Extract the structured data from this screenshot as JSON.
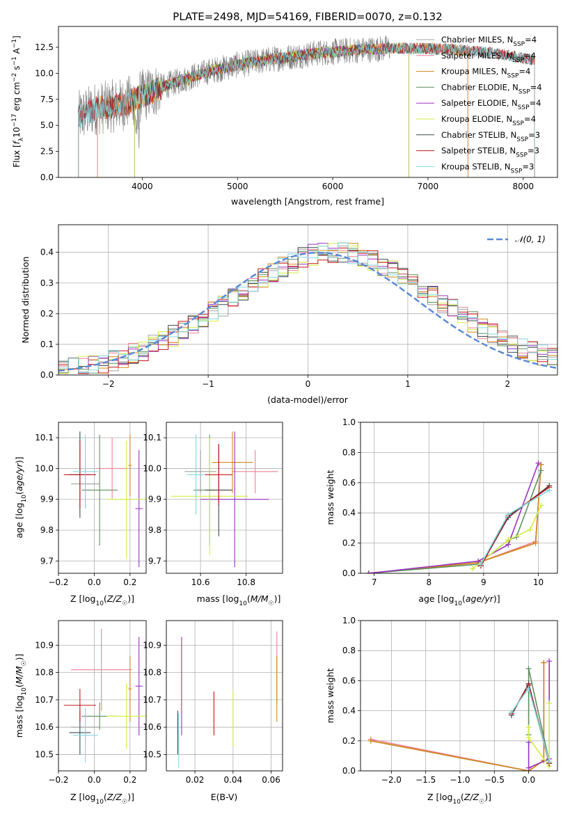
{
  "figure_title": "PLATE=2498, MJD=54169, FIBERID=0070, z=0.132",
  "colors": {
    "chabrier_miles": "#a0a0a0",
    "salpeter_miles": "#f08090",
    "kroupa_miles": "#d08818",
    "chabrier_elodie": "#5f8f5f",
    "salpeter_elodie": "#9a30c0",
    "kroupa_elodie": "#d0ee40",
    "chabrier_stelib": "#3a4a4a",
    "salpeter_stelib": "#c01818",
    "kroupa_stelib": "#80d8e0",
    "normal_curve": "#5a8ad8"
  },
  "chart_data": [
    {
      "id": "spectrum",
      "type": "line",
      "title": "PLATE=2498, MJD=54169, FIBERID=0070, z=0.132",
      "xlabel": "wavelength [Angstrom, rest frame]",
      "ylabel": "Flux [f_λ 10^-17 erg cm^-2 s^-1 A^-1]",
      "xlim": [
        3120,
        8360
      ],
      "ylim": [
        0,
        14.5
      ],
      "xticks": [
        4000,
        5000,
        6000,
        7000,
        8000
      ],
      "yticks": [
        0.0,
        2.5,
        5.0,
        7.5,
        10.0,
        12.5
      ],
      "legend_position": "top-right",
      "series": [
        {
          "name": "Chabrier MILES, N_SSP=4",
          "key": "chabrier_miles",
          "x_range": [
            3530,
            7420
          ]
        },
        {
          "name": "Salpeter MILES, N_SSP=4",
          "key": "salpeter_miles",
          "x_range": [
            3530,
            7420
          ]
        },
        {
          "name": "Kroupa MILES, N_SSP=4",
          "key": "kroupa_miles",
          "x_range": [
            3530,
            7420
          ]
        },
        {
          "name": "Chabrier ELODIE, N_SSP=4",
          "key": "chabrier_elodie",
          "x_range": [
            3920,
            6800
          ]
        },
        {
          "name": "Salpeter ELODIE, N_SSP=4",
          "key": "salpeter_elodie",
          "x_range": [
            3920,
            6800
          ]
        },
        {
          "name": "Kroupa ELODIE, N_SSP=4",
          "key": "kroupa_elodie",
          "x_range": [
            3920,
            6800
          ]
        },
        {
          "name": "Chabrier STELIB, N_SSP=3",
          "key": "chabrier_stelib",
          "x_range": [
            3330,
            8120
          ]
        },
        {
          "name": "Salpeter STELIB, N_SSP=3",
          "key": "salpeter_stelib",
          "x_range": [
            3330,
            8120
          ]
        },
        {
          "name": "Kroupa STELIB, N_SSP=3",
          "key": "kroupa_stelib",
          "x_range": [
            3330,
            8120
          ]
        }
      ],
      "continuum": {
        "x": [
          3330,
          3500,
          3800,
          4000,
          4300,
          4700,
          5000,
          5400,
          5800,
          6200,
          6600,
          7000,
          7400,
          7800,
          8100
        ],
        "y": [
          5.8,
          6.6,
          7.0,
          7.8,
          9.0,
          10.2,
          10.8,
          11.4,
          11.9,
          12.2,
          12.4,
          12.4,
          12.2,
          11.8,
          11.3
        ]
      }
    },
    {
      "id": "residuals",
      "type": "histogram",
      "xlabel": "(data-model)/error",
      "ylabel": "Normed distribution",
      "xlim": [
        -2.5,
        2.5
      ],
      "ylim": [
        0,
        0.49
      ],
      "xticks": [
        -2,
        -1,
        0,
        1,
        2
      ],
      "yticks": [
        0.0,
        0.1,
        0.2,
        0.3,
        0.4
      ],
      "legend": "𝒩(0, 1)",
      "legend_position": "top-right",
      "bin_width": 0.1,
      "mean_density": [
        0.018,
        0.022,
        0.027,
        0.033,
        0.04,
        0.048,
        0.058,
        0.069,
        0.081,
        0.095,
        0.11,
        0.127,
        0.145,
        0.164,
        0.184,
        0.205,
        0.227,
        0.249,
        0.271,
        0.293,
        0.313,
        0.333,
        0.351,
        0.368,
        0.381,
        0.392,
        0.398,
        0.401,
        0.4,
        0.395,
        0.386,
        0.374,
        0.358,
        0.341,
        0.321,
        0.301,
        0.279,
        0.258,
        0.236,
        0.214,
        0.193,
        0.172,
        0.153,
        0.135,
        0.118,
        0.102,
        0.088,
        0.075,
        0.064,
        0.054
      ],
      "normal_curve": {
        "mean": 0.1,
        "sigma": 1.0
      }
    },
    {
      "id": "age_vs_Z",
      "type": "errorbar",
      "xlabel": "Z [log10(Z/Z☉)]",
      "ylabel": "age [log10(age/yr)]",
      "xlim": [
        -0.2,
        0.29
      ],
      "ylim": [
        9.66,
        10.15
      ],
      "xticks": [
        -0.2,
        0.0,
        0.2
      ],
      "yticks": [
        9.7,
        9.8,
        9.9,
        10.0,
        10.1
      ],
      "points": [
        {
          "key": "chabrier_miles",
          "x": -0.05,
          "xerr": 0.08,
          "y": 9.95,
          "yerr": 0.08
        },
        {
          "key": "salpeter_miles",
          "x": 0.1,
          "xerr": 0.09,
          "y": 10.0,
          "yerr": 0.1
        },
        {
          "key": "kroupa_miles",
          "x": 0.2,
          "xerr": 0.01,
          "y": 10.01,
          "yerr": 0.1
        },
        {
          "key": "chabrier_elodie",
          "x": 0.03,
          "xerr": 0.1,
          "y": 9.93,
          "yerr": 0.18
        },
        {
          "key": "salpeter_elodie",
          "x": 0.25,
          "xerr": 0.02,
          "y": 9.87,
          "yerr": 0.19
        },
        {
          "key": "kroupa_elodie",
          "x": 0.18,
          "xerr": 0.11,
          "y": 9.9,
          "yerr": 0.19
        },
        {
          "key": "chabrier_stelib",
          "x": -0.08,
          "xerr": 0.06,
          "y": 9.98,
          "yerr": 0.14
        },
        {
          "key": "salpeter_stelib",
          "x": -0.08,
          "xerr": 0.09,
          "y": 9.98,
          "yerr": 0.11
        },
        {
          "key": "kroupa_stelib",
          "x": -0.05,
          "xerr": 0.07,
          "y": 9.99,
          "yerr": 0.12
        }
      ]
    },
    {
      "id": "age_vs_mass",
      "type": "errorbar",
      "xlabel": "mass [log10(M/M☉)]",
      "ylabel": "",
      "xlim": [
        10.45,
        10.96
      ],
      "ylim": [
        9.66,
        10.15
      ],
      "xticks": [
        10.6,
        10.8
      ],
      "yticks": [
        9.7,
        9.8,
        9.9,
        10.0,
        10.1
      ],
      "points": [
        {
          "key": "chabrier_miles",
          "x": 10.6,
          "xerr": 0.07,
          "y": 9.99,
          "yerr": 0.07
        },
        {
          "key": "salpeter_miles",
          "x": 10.84,
          "xerr": 0.1,
          "y": 9.99,
          "yerr": 0.07
        },
        {
          "key": "kroupa_miles",
          "x": 10.74,
          "xerr": 0.09,
          "y": 10.02,
          "yerr": 0.1
        },
        {
          "key": "chabrier_elodie",
          "x": 10.64,
          "xerr": 0.07,
          "y": 9.93,
          "yerr": 0.18
        },
        {
          "key": "salpeter_elodie",
          "x": 10.75,
          "xerr": 0.15,
          "y": 9.9,
          "yerr": 0.22
        },
        {
          "key": "kroupa_elodie",
          "x": 10.64,
          "xerr": 0.17,
          "y": 9.91,
          "yerr": 0.19
        },
        {
          "key": "chabrier_stelib",
          "x": 10.68,
          "xerr": 0.06,
          "y": 9.93,
          "yerr": 0.15
        },
        {
          "key": "salpeter_stelib",
          "x": 10.68,
          "xerr": 0.06,
          "y": 9.98,
          "yerr": 0.1
        },
        {
          "key": "kroupa_stelib",
          "x": 10.58,
          "xerr": 0.04,
          "y": 9.98,
          "yerr": 0.13
        }
      ]
    },
    {
      "id": "weight_vs_age",
      "type": "line",
      "xlabel": "age [log10(age/yr)]",
      "ylabel": "mass weight",
      "xlim": [
        6.75,
        10.35
      ],
      "ylim": [
        0.0,
        1.0
      ],
      "xticks": [
        7,
        8,
        9,
        10
      ],
      "yticks": [
        0.0,
        0.2,
        0.4,
        0.6,
        0.8,
        1.0
      ],
      "series": [
        {
          "key": "chabrier_miles",
          "x": [
            6.9,
            8.9,
            9.95,
            10.05
          ],
          "y": [
            0.0,
            0.07,
            0.21,
            0.72
          ]
        },
        {
          "key": "salpeter_miles",
          "x": [
            6.9,
            8.9,
            9.95,
            10.05
          ],
          "y": [
            0.0,
            0.07,
            0.21,
            0.72
          ]
        },
        {
          "key": "kroupa_miles",
          "x": [
            6.9,
            8.9,
            9.95,
            10.05
          ],
          "y": [
            0.0,
            0.07,
            0.2,
            0.72
          ]
        },
        {
          "key": "chabrier_elodie",
          "x": [
            6.9,
            8.9,
            9.45,
            9.6,
            10.05
          ],
          "y": [
            0.0,
            0.06,
            0.22,
            0.24,
            0.68
          ]
        },
        {
          "key": "salpeter_elodie",
          "x": [
            6.9,
            8.9,
            9.45,
            10.0
          ],
          "y": [
            0.0,
            0.08,
            0.19,
            0.73
          ]
        },
        {
          "key": "kroupa_elodie",
          "x": [
            8.8,
            9.45,
            9.85,
            10.05
          ],
          "y": [
            0.03,
            0.22,
            0.29,
            0.45
          ]
        },
        {
          "key": "chabrier_stelib",
          "x": [
            8.95,
            9.45,
            10.2
          ],
          "y": [
            0.05,
            0.37,
            0.58
          ]
        },
        {
          "key": "salpeter_stelib",
          "x": [
            8.95,
            9.45,
            10.2
          ],
          "y": [
            0.05,
            0.38,
            0.57
          ]
        },
        {
          "key": "kroupa_stelib",
          "x": [
            8.95,
            9.45,
            10.2
          ],
          "y": [
            0.06,
            0.39,
            0.55
          ]
        }
      ]
    },
    {
      "id": "mass_vs_Z",
      "type": "errorbar",
      "xlabel": "Z [log10(Z/Z☉)]",
      "ylabel": "mass [log10(M/M☉)]",
      "xlim": [
        -0.2,
        0.29
      ],
      "ylim": [
        10.44,
        10.99
      ],
      "xticks": [
        -0.2,
        0.0,
        0.2
      ],
      "yticks": [
        10.5,
        10.6,
        10.7,
        10.8,
        10.9
      ],
      "points": [
        {
          "key": "chabrier_miles",
          "x": -0.05,
          "xerr": 0.08,
          "y": 10.6,
          "yerr": 0.05
        },
        {
          "key": "salpeter_miles",
          "x": 0.04,
          "xerr": 0.17,
          "y": 10.81,
          "yerr": 0.15
        },
        {
          "key": "kroupa_miles",
          "x": 0.2,
          "xerr": 0.01,
          "y": 10.74,
          "yerr": 0.12
        },
        {
          "key": "chabrier_elodie",
          "x": 0.03,
          "xerr": 0.1,
          "y": 10.64,
          "yerr": 0.05
        },
        {
          "key": "salpeter_elodie",
          "x": 0.25,
          "xerr": 0.02,
          "y": 10.75,
          "yerr": 0.18
        },
        {
          "key": "kroupa_elodie",
          "x": 0.18,
          "xerr": 0.11,
          "y": 10.64,
          "yerr": 0.12
        },
        {
          "key": "chabrier_stelib",
          "x": -0.08,
          "xerr": 0.06,
          "y": 10.58,
          "yerr": 0.08
        },
        {
          "key": "salpeter_stelib",
          "x": -0.08,
          "xerr": 0.09,
          "y": 10.68,
          "yerr": 0.06
        },
        {
          "key": "kroupa_stelib",
          "x": -0.05,
          "xerr": 0.07,
          "y": 10.57,
          "yerr": 0.1
        }
      ]
    },
    {
      "id": "mass_vs_ebv",
      "type": "errorbar",
      "xlabel": "E(B-V)",
      "ylabel": "",
      "xlim": [
        0.005,
        0.066
      ],
      "ylim": [
        10.44,
        10.99
      ],
      "xticks": [
        0.02,
        0.04,
        0.06
      ],
      "yticks": [
        10.5,
        10.6,
        10.7,
        10.8,
        10.9
      ],
      "points": [
        {
          "key": "salpeter_miles",
          "x": 0.063,
          "xerr": 0,
          "y": 10.82,
          "yerr": 0.13
        },
        {
          "key": "kroupa_miles",
          "x": 0.063,
          "xerr": 0,
          "y": 10.74,
          "yerr": 0.12
        },
        {
          "key": "salpeter_elodie",
          "x": 0.013,
          "xerr": 0,
          "y": 10.75,
          "yerr": 0.18
        },
        {
          "key": "kroupa_elodie",
          "x": 0.04,
          "xerr": 0,
          "y": 10.63,
          "yerr": 0.1
        },
        {
          "key": "chabrier_stelib",
          "x": 0.011,
          "xerr": 0,
          "y": 10.58,
          "yerr": 0.08
        },
        {
          "key": "salpeter_stelib",
          "x": 0.03,
          "xerr": 0,
          "y": 10.65,
          "yerr": 0.08
        },
        {
          "key": "kroupa_stelib",
          "x": 0.0115,
          "xerr": 0,
          "y": 10.55,
          "yerr": 0.1
        }
      ]
    },
    {
      "id": "weight_vs_Z",
      "type": "line",
      "xlabel": "Z [log10(Z/Z☉)]",
      "ylabel": "mass weight",
      "xlim": [
        -2.45,
        0.42
      ],
      "ylim": [
        0.0,
        1.0
      ],
      "xticks": [
        -2.0,
        -1.5,
        -1.0,
        -0.5,
        0.0
      ],
      "yticks": [
        0.0,
        0.2,
        0.4,
        0.6,
        0.8,
        1.0
      ],
      "series": [
        {
          "key": "chabrier_miles",
          "x": [
            -2.3,
            0.0,
            0.22,
            0.22
          ],
          "y": [
            0.2,
            0.0,
            0.07,
            0.72
          ]
        },
        {
          "key": "salpeter_miles",
          "x": [
            -2.3,
            0.0,
            0.22,
            0.22
          ],
          "y": [
            0.21,
            0.0,
            0.07,
            0.72
          ]
        },
        {
          "key": "kroupa_miles",
          "x": [
            -2.3,
            0.0,
            0.22,
            0.22
          ],
          "y": [
            0.2,
            0.0,
            0.07,
            0.72
          ]
        },
        {
          "key": "chabrier_elodie",
          "x": [
            0.0,
            0.0,
            0.3,
            0.3
          ],
          "y": [
            0.24,
            0.68,
            0.06,
            0.05
          ]
        },
        {
          "key": "salpeter_elodie",
          "x": [
            0.0,
            0.0,
            0.3,
            0.3
          ],
          "y": [
            0.19,
            0.02,
            0.08,
            0.73
          ]
        },
        {
          "key": "kroupa_elodie",
          "x": [
            0.0,
            0.0,
            0.3,
            0.3
          ],
          "y": [
            0.29,
            0.22,
            0.03,
            0.45
          ]
        },
        {
          "key": "chabrier_stelib",
          "x": [
            -0.25,
            0.0,
            0.3
          ],
          "y": [
            0.37,
            0.58,
            0.05
          ]
        },
        {
          "key": "salpeter_stelib",
          "x": [
            -0.25,
            0.0,
            0.3
          ],
          "y": [
            0.38,
            0.57,
            0.05
          ]
        },
        {
          "key": "kroupa_stelib",
          "x": [
            -0.25,
            0.0,
            0.3
          ],
          "y": [
            0.39,
            0.55,
            0.06
          ]
        }
      ]
    }
  ]
}
